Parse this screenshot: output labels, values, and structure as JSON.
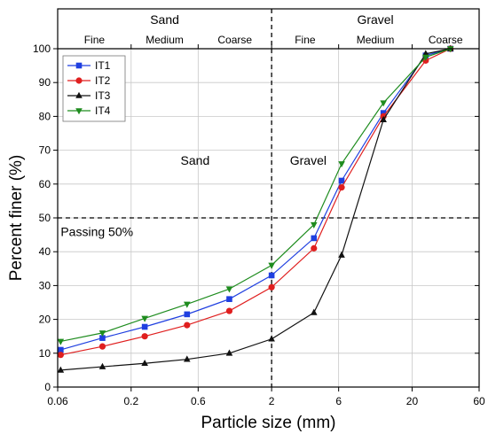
{
  "chart_data": {
    "type": "line",
    "xlabel": "Particle size (mm)",
    "ylabel": "Percent finer (%)",
    "x_scale": "log",
    "xlim": [
      0.06,
      60
    ],
    "ylim": [
      0,
      100
    ],
    "x_ticks": [
      {
        "value": 0.06,
        "label": "0.06"
      },
      {
        "value": 0.2,
        "label": "0.2"
      },
      {
        "value": 0.6,
        "label": "0.6"
      },
      {
        "value": 2,
        "label": "2"
      },
      {
        "value": 6,
        "label": "6"
      },
      {
        "value": 20,
        "label": "20"
      },
      {
        "value": 60,
        "label": "60"
      }
    ],
    "y_ticks": [
      0,
      10,
      20,
      30,
      40,
      50,
      60,
      70,
      80,
      90,
      100
    ],
    "grid": true,
    "legend_position": "top-left",
    "header_regions": [
      {
        "label": "Sand",
        "from": 0.06,
        "to": 2
      },
      {
        "label": "Gravel",
        "from": 2,
        "to": 60
      }
    ],
    "header_subregions": [
      {
        "label": "Fine",
        "from": 0.06,
        "to": 0.2
      },
      {
        "label": "Medium",
        "from": 0.2,
        "to": 0.6
      },
      {
        "label": "Coarse",
        "from": 0.6,
        "to": 2
      },
      {
        "label": "Fine",
        "from": 2,
        "to": 6
      },
      {
        "label": "Medium",
        "from": 6,
        "to": 20
      },
      {
        "label": "Coarse",
        "from": 20,
        "to": 60
      }
    ],
    "annotations": [
      {
        "text": "Sand",
        "x": 0.45,
        "y": 67
      },
      {
        "text": "Gravel",
        "x": 2.7,
        "y": 67
      },
      {
        "text": "Passing 50%",
        "x": 0.063,
        "y": 46
      }
    ],
    "reference_lines": [
      {
        "orientation": "horizontal",
        "value": 50,
        "style": "dashed"
      },
      {
        "orientation": "vertical",
        "value": 2,
        "style": "dashed"
      }
    ],
    "series": [
      {
        "name": "IT1",
        "color": "#1f3fe0",
        "marker": "square",
        "x": [
          0.063,
          0.125,
          0.25,
          0.5,
          1,
          2,
          4,
          6.3,
          12.5,
          25,
          37.5
        ],
        "y": [
          11,
          14.5,
          17.8,
          21.5,
          26,
          33,
          44,
          61,
          81,
          98,
          100
        ]
      },
      {
        "name": "IT2",
        "color": "#e01f1f",
        "marker": "circle",
        "x": [
          0.063,
          0.125,
          0.25,
          0.5,
          1,
          2,
          4,
          6.3,
          12.5,
          25,
          37.5
        ],
        "y": [
          9.5,
          12,
          15,
          18.3,
          22.5,
          29.5,
          41,
          59,
          80,
          96.5,
          100
        ]
      },
      {
        "name": "IT3",
        "color": "#111111",
        "marker": "triangle-up",
        "x": [
          0.063,
          0.125,
          0.25,
          0.5,
          1,
          2,
          4,
          6.3,
          12.5,
          25,
          37.5
        ],
        "y": [
          5,
          6,
          7,
          8.2,
          10,
          14.2,
          22,
          39,
          79,
          98.5,
          100
        ]
      },
      {
        "name": "IT4",
        "color": "#1e8c1e",
        "marker": "triangle-down",
        "x": [
          0.063,
          0.125,
          0.25,
          0.5,
          1,
          2,
          4,
          6.3,
          12.5,
          25,
          37.5
        ],
        "y": [
          13.5,
          16,
          20.3,
          24.5,
          29,
          36,
          48,
          66,
          84,
          97.5,
          100
        ]
      }
    ]
  }
}
